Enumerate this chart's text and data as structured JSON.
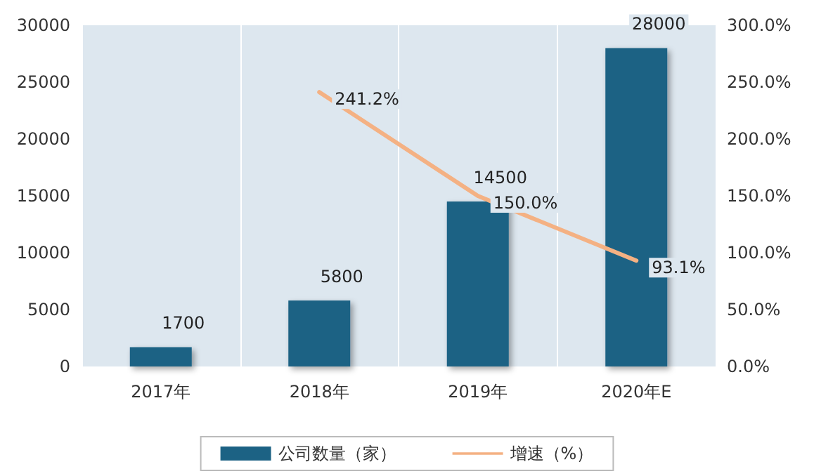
{
  "chart_data": {
    "type": "bar",
    "categories": [
      "2017年",
      "2018年",
      "2019年",
      "2020年E"
    ],
    "series": [
      {
        "name": "公司数量（家）",
        "type": "bar",
        "color": "#1c6284",
        "values": [
          1700,
          5800,
          14500,
          28000
        ],
        "value_labels": [
          "1700",
          "5800",
          "14500",
          "28000"
        ]
      },
      {
        "name": "增速（%）",
        "type": "line",
        "axis": "y2",
        "color": "#f4b183",
        "values": [
          null,
          241.2,
          150.0,
          93.1
        ],
        "value_labels": [
          null,
          "241.2%",
          "150.0%",
          "93.1%"
        ]
      }
    ],
    "ylim": [
      0,
      30000
    ],
    "yticks": [
      0,
      5000,
      10000,
      15000,
      20000,
      25000,
      30000
    ],
    "y2lim": [
      0,
      300
    ],
    "y2ticks": [
      {
        "value": 0,
        "label": "0.0%"
      },
      {
        "value": 50,
        "label": "50.0%"
      },
      {
        "value": 100,
        "label": "100.0%"
      },
      {
        "value": 150,
        "label": "150.0%"
      },
      {
        "value": 200,
        "label": "200.0%"
      },
      {
        "value": 250,
        "label": "250.0%"
      },
      {
        "value": 300,
        "label": "300.0%"
      }
    ],
    "grid": "x",
    "legend": "bottom",
    "marker": "none"
  }
}
